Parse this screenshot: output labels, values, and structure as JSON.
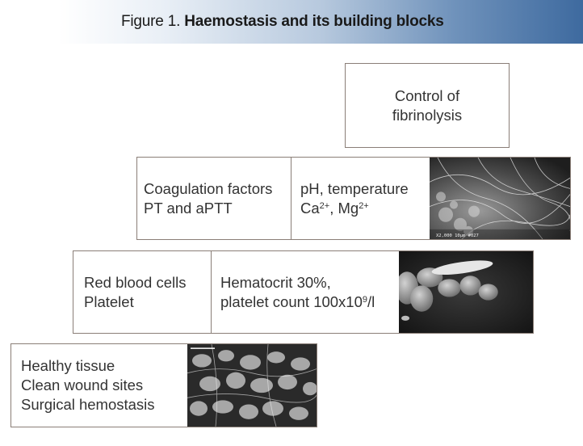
{
  "title": {
    "prefix": "Figure 1.",
    "bold": "Haemostasis and its building blocks"
  },
  "tiers": {
    "fibrinolysis": {
      "line1": "Control of",
      "line2": "fibrinolysis"
    },
    "coagulation": {
      "factors_line1": "Coagulation factors",
      "factors_line2": "PT and aPTT",
      "conditions_line1": "pH, temperature",
      "ca": "Ca",
      "ca_sup": "2+",
      "mg_prefix": ", Mg",
      "mg_sup": "2+",
      "micrograph_caption": "X2,000   10µm  #027"
    },
    "cells": {
      "cells_line1": "Red blood cells",
      "cells_line2": "Platelet",
      "values_line1": "Hematocrit 30%,",
      "values_line2_prefix": "platelet count 100x10",
      "values_line2_sup": "9",
      "values_line2_suffix": "/l"
    },
    "tissue": {
      "line1": "Healthy tissue",
      "line2": "Clean wound sites",
      "line3": "Surgical hemostasis"
    }
  },
  "colors": {
    "border": "#8a7e77",
    "banner_end": "#3e6a9f",
    "text": "#333333"
  }
}
